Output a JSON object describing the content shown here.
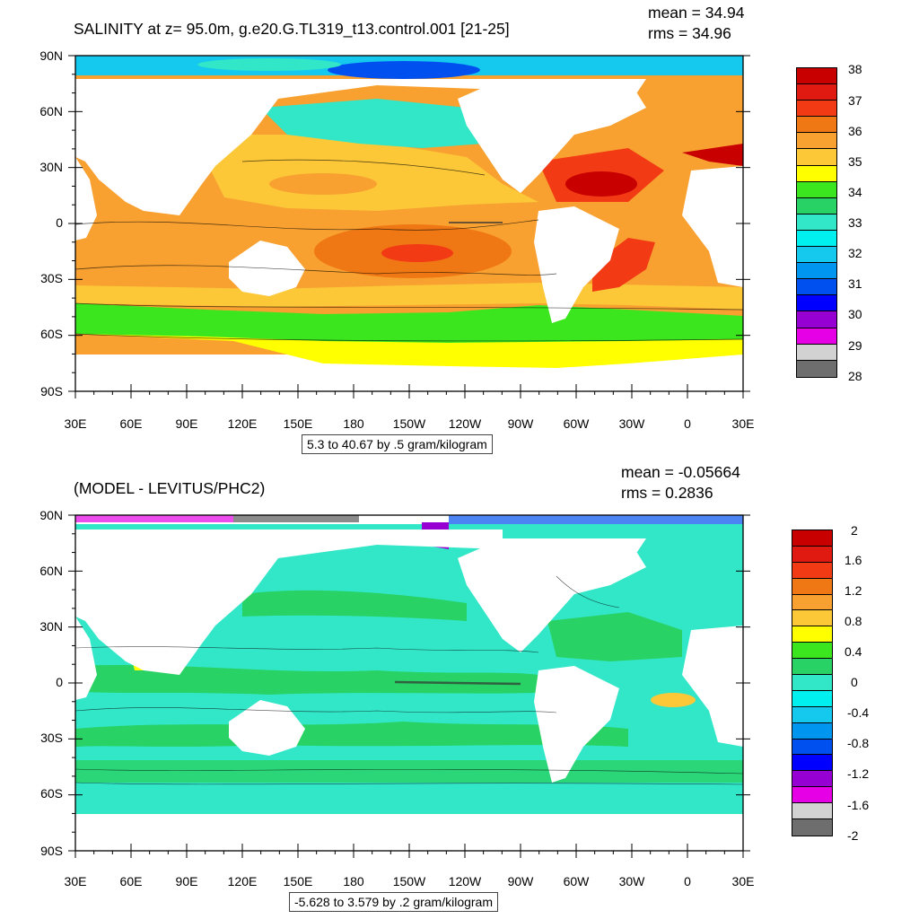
{
  "top": {
    "title": "SALINITY at z=  95.0m, g.e20.G.TL319_t13.control.001 [21-25]",
    "mean": "mean = 34.94",
    "rms": "rms = 34.96",
    "info": "5.3 to 40.67 by .5 gram/kilogram",
    "lat_labels": [
      "90N",
      "60N",
      "30N",
      "0",
      "30S",
      "60S",
      "90S"
    ],
    "lon_labels": [
      "30E",
      "60E",
      "90E",
      "120E",
      "150E",
      "180",
      "150W",
      "120W",
      "90W",
      "60W",
      "30W",
      "0",
      "30E"
    ],
    "colorbar_labels": [
      "38",
      "37",
      "36",
      "35",
      "34",
      "33",
      "32",
      "31",
      "30",
      "29",
      "28"
    ],
    "colorbar_colors": [
      "#c80000",
      "#e01a10",
      "#f23a14",
      "#f07814",
      "#f8a030",
      "#fcc838",
      "#ffff00",
      "#3ce61e",
      "#28d264",
      "#32e6c8",
      "#00f0f0",
      "#14c8ee",
      "#0096f0",
      "#0050f0",
      "#0000ff",
      "#9600d2",
      "#e600e6",
      "#d2d2d2",
      "#6e6e6e"
    ]
  },
  "bottom": {
    "title": "(MODEL - LEVITUS/PHC2)",
    "mean": "mean = -0.05664",
    "rms": "rms = 0.2836",
    "info": "-5.628 to 3.579 by .2 gram/kilogram",
    "lat_labels": [
      "90N",
      "60N",
      "30N",
      "0",
      "30S",
      "60S",
      "90S"
    ],
    "lon_labels": [
      "30E",
      "60E",
      "90E",
      "120E",
      "150E",
      "180",
      "150W",
      "120W",
      "90W",
      "60W",
      "30W",
      "0",
      "30E"
    ],
    "colorbar_labels": [
      "2",
      "1.6",
      "1.2",
      "0.8",
      "0.4",
      "0",
      "-0.4",
      "-0.8",
      "-1.2",
      "-1.6",
      "-2"
    ],
    "colorbar_colors": [
      "#c80000",
      "#e01a10",
      "#f23a14",
      "#f07814",
      "#f8a030",
      "#fcc838",
      "#ffff00",
      "#3ce61e",
      "#28d264",
      "#32e6c8",
      "#00f0f0",
      "#14c8ee",
      "#0096f0",
      "#0050f0",
      "#0000ff",
      "#9600d2",
      "#e600e6",
      "#d2d2d2",
      "#6e6e6e"
    ]
  }
}
